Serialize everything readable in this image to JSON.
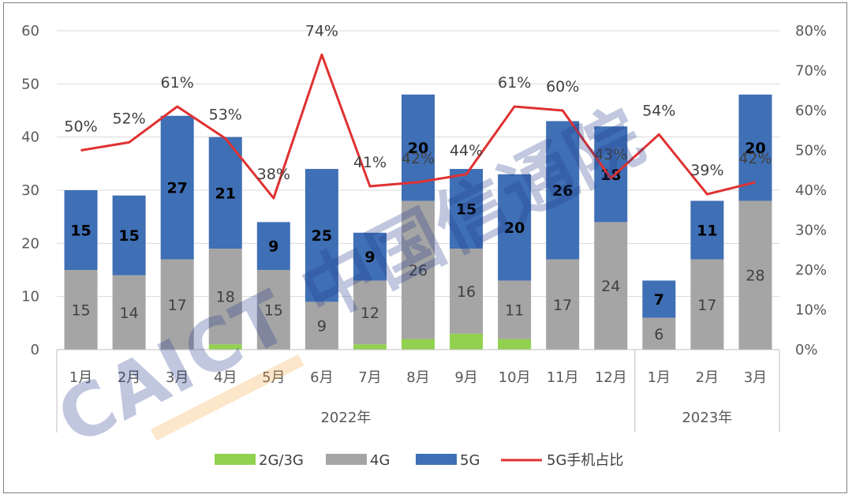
{
  "chart_data": {
    "type": "bar",
    "stacked": true,
    "categories": [
      "1月",
      "2月",
      "3月",
      "4月",
      "5月",
      "6月",
      "7月",
      "8月",
      "9月",
      "10月",
      "11月",
      "12月",
      "1月",
      "2月",
      "3月"
    ],
    "groups": [
      {
        "label": "2022年",
        "count": 12
      },
      {
        "label": "2023年",
        "count": 3
      }
    ],
    "series": [
      {
        "name": "2G/3G",
        "color": "#92d050",
        "values": [
          0,
          0,
          0,
          1,
          0,
          0,
          1,
          2,
          3,
          2,
          0,
          0,
          0,
          0,
          0
        ]
      },
      {
        "name": "4G",
        "color": "#a5a5a5",
        "values": [
          15,
          14,
          17,
          18,
          15,
          9,
          12,
          26,
          16,
          11,
          17,
          24,
          6,
          17,
          28
        ]
      },
      {
        "name": "5G",
        "color": "#3f6fb5",
        "values": [
          15,
          15,
          27,
          21,
          9,
          25,
          9,
          20,
          15,
          20,
          26,
          18,
          7,
          11,
          20
        ]
      }
    ],
    "line_series": {
      "name": "5G手机占比",
      "color": "#e03131",
      "axis": "right",
      "values": [
        50,
        52,
        61,
        53,
        38,
        74,
        41,
        42,
        44,
        61,
        60,
        43,
        54,
        39,
        42
      ],
      "labels": [
        "50%",
        "52%",
        "61%",
        "53%",
        "38%",
        "74%",
        "41%",
        "42%",
        "44%",
        "61%",
        "60%",
        "43%",
        "54%",
        "39%",
        "42%"
      ]
    },
    "y_left": {
      "min": 0,
      "max": 60,
      "ticks": [
        0,
        10,
        20,
        30,
        40,
        50,
        60
      ]
    },
    "y_right": {
      "min": 0,
      "max": 80,
      "ticks": [
        "0%",
        "10%",
        "20%",
        "30%",
        "40%",
        "50%",
        "60%",
        "70%",
        "80%"
      ]
    },
    "grid": true,
    "legend_position": "bottom",
    "legend": [
      "2G/3G",
      "4G",
      "5G",
      "5G手机占比"
    ],
    "watermark": "CAICT 中国信通院"
  }
}
